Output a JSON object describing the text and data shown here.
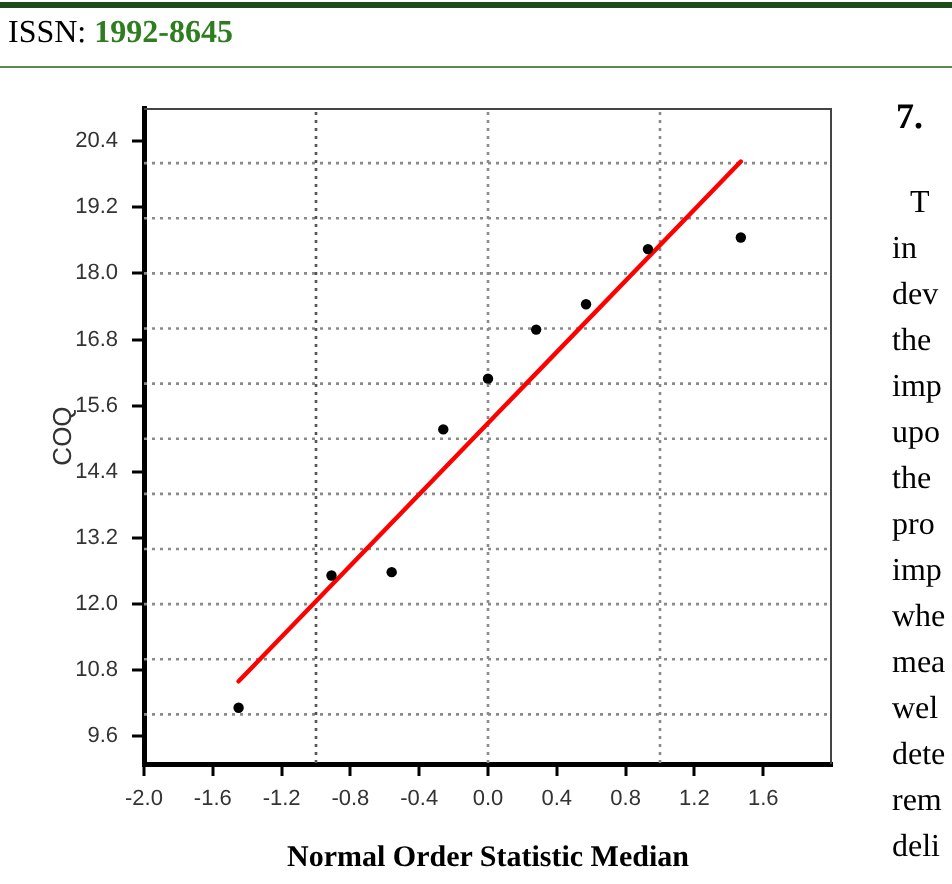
{
  "chart_data": {
    "type": "scatter",
    "xlabel": "Normal Order Statistic Median",
    "ylabel": "COQ",
    "annotations": [
      "ISSN: 1992-8645",
      "7.",
      "T in dev the imp upo the pro imp whe mea wel dete rem deli"
    ],
    "xlim": [
      -2,
      2
    ],
    "xticks": [
      {
        "value": -2,
        "label": "-2.0"
      },
      -1.6,
      -1.2,
      -0.8,
      -0.4,
      {
        "value": 0,
        "label": "0.0"
      },
      0.4,
      0.8,
      1.2,
      1.6
    ],
    "ylim": [
      9.1,
      21
    ],
    "yticks": [
      9.6,
      10.8,
      {
        "value": 12,
        "label": "12.0"
      },
      13.2,
      14.4,
      15.6,
      16.8,
      {
        "value": 18,
        "label": "18.0"
      },
      19.2,
      20.4
    ],
    "marker": "circle",
    "series": [
      {
        "color": "#000000",
        "x": [
          -1.45,
          -0.91,
          -0.56,
          -0.26,
          0.0,
          0.28,
          0.57,
          0.93,
          1.47
        ],
        "values": [
          10.12,
          12.52,
          12.58,
          15.17,
          16.09,
          16.98,
          17.44,
          18.44,
          18.65
        ]
      },
      {
        "type": "line",
        "color": "#ff0000",
        "marker": "none",
        "line_style": "solid",
        "x": [
          -1.45,
          1.47
        ],
        "values": [
          10.6,
          20.03
        ]
      }
    ],
    "ref_lines": [
      {
        "axis": "y",
        "value": 10,
        "color": "#8a8a8a",
        "line_style": "dotted"
      },
      {
        "axis": "y",
        "value": 11,
        "color": "#8a8a8a",
        "line_style": "dotted"
      },
      {
        "axis": "y",
        "value": 12,
        "color": "#8a8a8a",
        "line_style": "dotted"
      },
      {
        "axis": "y",
        "value": 13,
        "color": "#8a8a8a",
        "line_style": "dotted"
      },
      {
        "axis": "y",
        "value": 14,
        "color": "#8a8a8a",
        "line_style": "dotted"
      },
      {
        "axis": "y",
        "value": 15,
        "color": "#8a8a8a",
        "line_style": "dotted"
      },
      {
        "axis": "y",
        "value": 16,
        "color": "#8a8a8a",
        "line_style": "dotted"
      },
      {
        "axis": "y",
        "value": 17,
        "color": "#8a8a8a",
        "line_style": "dotted"
      },
      {
        "axis": "y",
        "value": 18,
        "color": "#8a8a8a",
        "line_style": "dotted"
      },
      {
        "axis": "y",
        "value": 19,
        "color": "#8a8a8a",
        "line_style": "dotted"
      },
      {
        "axis": "y",
        "value": 20,
        "color": "#8a8a8a",
        "line_style": "dotted"
      },
      {
        "axis": "x",
        "value": -1,
        "color": "#555555",
        "line_style": "dotted"
      },
      {
        "axis": "x",
        "value": 0,
        "color": "#8a8a8a",
        "line_style": "dotted"
      },
      {
        "axis": "x",
        "value": 1,
        "color": "#8a8a8a",
        "line_style": "dotted"
      }
    ]
  }
}
